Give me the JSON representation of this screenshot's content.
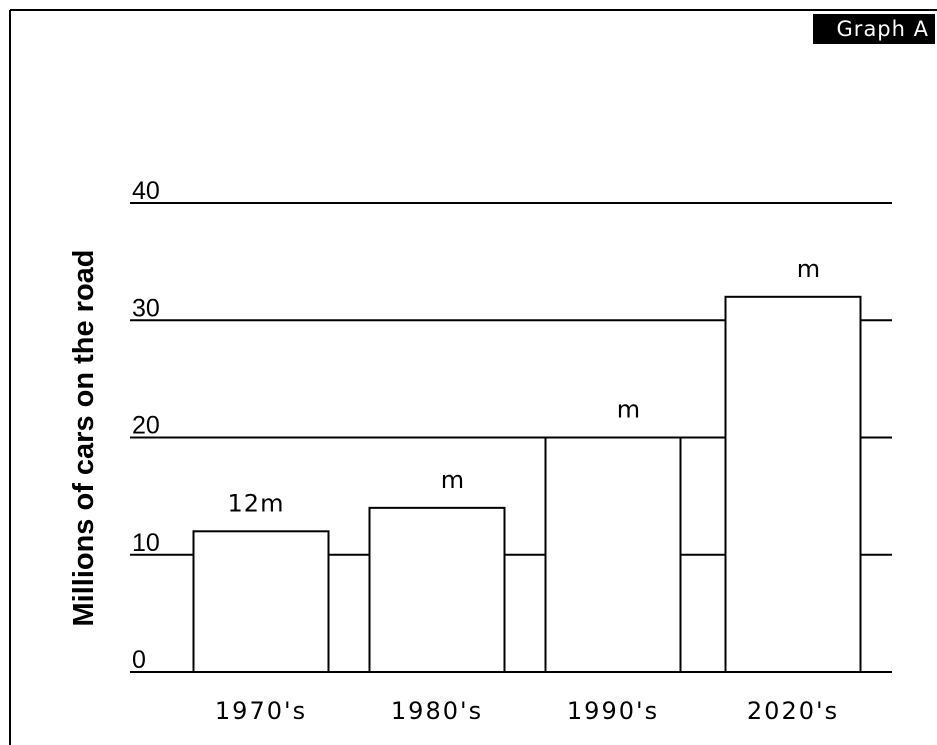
{
  "badge": "Graph A",
  "chart_data": {
    "type": "bar",
    "title": "",
    "xlabel": "",
    "ylabel": "Millions of cars on the road",
    "categories": [
      "1970's",
      "1980's",
      "1990's",
      "2020's"
    ],
    "values": [
      12,
      14,
      20,
      32
    ],
    "data_labels": [
      "12m",
      "m",
      "m",
      "m"
    ],
    "yticks": [
      0,
      10,
      20,
      30,
      40
    ],
    "ylim": [
      0,
      40
    ],
    "grid": true,
    "bar_fill": "#ffffff",
    "bar_stroke": "#000000"
  }
}
